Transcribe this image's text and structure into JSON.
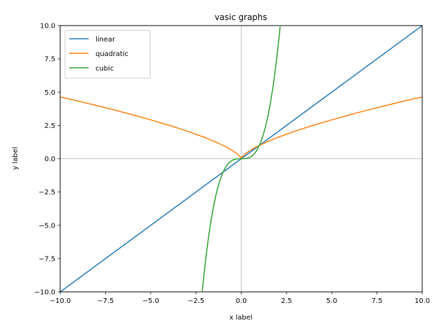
{
  "chart_data": {
    "type": "line",
    "title": "vasic graphs",
    "xlabel": "x label",
    "ylabel": "y label",
    "xlim": [
      -10,
      10
    ],
    "ylim": [
      -10,
      10
    ],
    "xticks": [
      -10.0,
      -7.5,
      -5.0,
      -2.5,
      0.0,
      2.5,
      5.0,
      7.5,
      10.0
    ],
    "yticks": [
      -10.0,
      -7.5,
      -5.0,
      -2.5,
      0.0,
      2.5,
      5.0,
      7.5,
      10.0
    ],
    "xtick_labels": [
      "−10.0",
      "−7.5",
      "−5.0",
      "−2.5",
      "0.0",
      "2.5",
      "5.0",
      "7.5",
      "10.0"
    ],
    "ytick_labels": [
      "−10.0",
      "−7.5",
      "−5.0",
      "−2.5",
      "0.0",
      "2.5",
      "5.0",
      "7.5",
      "10.0"
    ],
    "grid": false,
    "zero_lines": true,
    "legend_position": "top-left",
    "series": [
      {
        "name": "linear",
        "color": "#1f77b4",
        "x": [
          -10,
          -5,
          0,
          5,
          10
        ],
        "y": [
          -10,
          -5,
          0,
          5,
          10
        ]
      },
      {
        "name": "quadratic",
        "color": "#ff7f0e",
        "x": [
          -10,
          -9,
          -8,
          -7,
          -6,
          -5,
          -4,
          -3,
          -2,
          -1.5,
          -1,
          -0.75,
          -0.5,
          -0.3,
          -0.15,
          -0.05,
          0,
          0.05,
          0.15,
          0.3,
          0.5,
          0.75,
          1,
          1.5,
          2,
          3,
          4,
          5,
          6,
          7,
          8,
          9,
          10
        ],
        "y": [
          4.64,
          4.33,
          4.0,
          3.66,
          3.3,
          2.92,
          2.52,
          2.08,
          1.59,
          1.31,
          1.0,
          0.83,
          0.63,
          0.45,
          0.28,
          0.14,
          0.0,
          0.14,
          0.28,
          0.45,
          0.63,
          0.83,
          1.0,
          1.31,
          1.59,
          2.08,
          2.52,
          2.92,
          3.3,
          3.66,
          4.0,
          4.33,
          4.64
        ]
      },
      {
        "name": "cubic",
        "color": "#2ca02c",
        "x": [
          -2.15,
          -2.1,
          -2.0,
          -1.9,
          -1.8,
          -1.7,
          -1.6,
          -1.5,
          -1.4,
          -1.3,
          -1.2,
          -1.1,
          -1.0,
          -0.9,
          -0.8,
          -0.7,
          -0.6,
          -0.5,
          -0.4,
          -0.3,
          -0.2,
          -0.1,
          0,
          0.1,
          0.2,
          0.3,
          0.4,
          0.5,
          0.6,
          0.7,
          0.8,
          0.9,
          1.0,
          1.1,
          1.2,
          1.3,
          1.4,
          1.5,
          1.6,
          1.7,
          1.8,
          1.9,
          2.0,
          2.1,
          2.15
        ],
        "y": [
          -9.94,
          -9.26,
          -8.0,
          -6.86,
          -5.83,
          -4.91,
          -4.1,
          -3.38,
          -2.74,
          -2.2,
          -1.73,
          -1.33,
          -1.0,
          -0.73,
          -0.51,
          -0.34,
          -0.22,
          -0.125,
          -0.064,
          -0.027,
          -0.008,
          -0.001,
          0,
          0.001,
          0.008,
          0.027,
          0.064,
          0.125,
          0.22,
          0.34,
          0.51,
          0.73,
          1.0,
          1.33,
          1.73,
          2.2,
          2.74,
          3.38,
          4.1,
          4.91,
          5.83,
          6.86,
          8.0,
          9.26,
          9.94
        ]
      }
    ]
  }
}
